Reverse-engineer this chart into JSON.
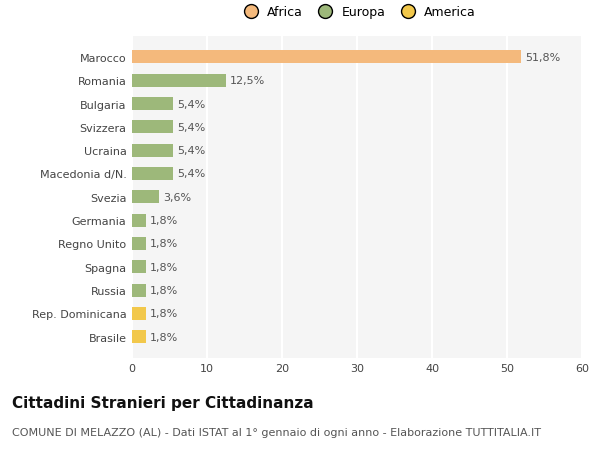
{
  "categories": [
    "Brasile",
    "Rep. Dominicana",
    "Russia",
    "Spagna",
    "Regno Unito",
    "Germania",
    "Svezia",
    "Macedonia d/N.",
    "Ucraina",
    "Svizzera",
    "Bulgaria",
    "Romania",
    "Marocco"
  ],
  "values": [
    1.8,
    1.8,
    1.8,
    1.8,
    1.8,
    1.8,
    3.6,
    5.4,
    5.4,
    5.4,
    5.4,
    12.5,
    51.8
  ],
  "labels": [
    "1,8%",
    "1,8%",
    "1,8%",
    "1,8%",
    "1,8%",
    "1,8%",
    "3,6%",
    "5,4%",
    "5,4%",
    "5,4%",
    "5,4%",
    "12,5%",
    "51,8%"
  ],
  "colors": [
    "#f2c84b",
    "#f2c84b",
    "#9db87a",
    "#9db87a",
    "#9db87a",
    "#9db87a",
    "#9db87a",
    "#9db87a",
    "#9db87a",
    "#9db87a",
    "#9db87a",
    "#9db87a",
    "#f4b97c"
  ],
  "legend_labels": [
    "Africa",
    "Europa",
    "America"
  ],
  "legend_colors": [
    "#f4b97c",
    "#9db87a",
    "#f2c84b"
  ],
  "title": "Cittadini Stranieri per Cittadinanza",
  "subtitle": "COMUNE DI MELAZZO (AL) - Dati ISTAT al 1° gennaio di ogni anno - Elaborazione TUTTITALIA.IT",
  "xlim": [
    0,
    60
  ],
  "xticks": [
    0,
    10,
    20,
    30,
    40,
    50,
    60
  ],
  "background_color": "#ffffff",
  "bar_height": 0.55,
  "title_fontsize": 11,
  "subtitle_fontsize": 8,
  "label_fontsize": 8,
  "tick_fontsize": 8,
  "legend_fontsize": 9
}
